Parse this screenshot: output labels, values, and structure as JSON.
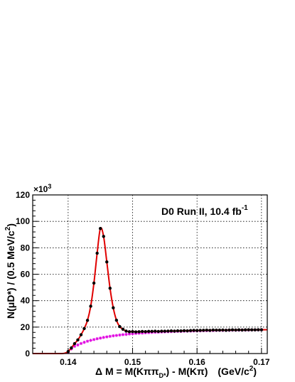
{
  "chart_data": {
    "type": "scatter",
    "title": {
      "main": "D0 Run II, 10.4 fb",
      "sup": "-1"
    },
    "xlabel": {
      "delta_m": "Δ M = M(Kππ",
      "sub_d": "D*",
      "rest": ") - M(Kπ)",
      "units_pre": "(GeV/c",
      "units_sup": "2",
      "units_post": ")"
    },
    "ylabel": {
      "pre": "N(μD*) / (0.5 MeV/c",
      "sup": "2",
      "post": ")"
    },
    "y_multiplier": {
      "base": "×10",
      "exp": "3"
    },
    "xlim": [
      0.1345,
      0.1709
    ],
    "ylim": [
      0,
      120
    ],
    "grid": true,
    "x_ticks": [
      0.14,
      0.15,
      0.16,
      0.17
    ],
    "x_tick_labels": [
      "0.14",
      "0.15",
      "0.16",
      "0.17"
    ],
    "y_ticks": [
      0,
      20,
      40,
      60,
      80,
      100,
      120
    ],
    "y_tick_labels": [
      "0",
      "20",
      "40",
      "60",
      "80",
      "100",
      "120"
    ],
    "colors": {
      "data": "#000000",
      "fit": "#e00000",
      "background": "#e000e0"
    },
    "series": [
      {
        "role": "data",
        "x": [
          0.14,
          0.1405,
          0.141,
          0.1415,
          0.142,
          0.1425,
          0.143,
          0.1435,
          0.144,
          0.1445,
          0.145,
          0.1455,
          0.146,
          0.1465,
          0.147,
          0.1475,
          0.148,
          0.1485,
          0.149,
          0.1495,
          0.15,
          0.1505,
          0.151,
          0.1515,
          0.152,
          0.1525,
          0.153,
          0.1535,
          0.154,
          0.1545,
          0.155,
          0.1555,
          0.156,
          0.1565,
          0.157,
          0.1575,
          0.158,
          0.1585,
          0.159,
          0.1595,
          0.16,
          0.1605,
          0.161,
          0.1615,
          0.162,
          0.1625,
          0.163,
          0.1635,
          0.164,
          0.1645,
          0.165,
          0.1655,
          0.166,
          0.1665,
          0.167,
          0.1675,
          0.168,
          0.1685,
          0.169,
          0.1695,
          0.17
        ],
        "y": [
          1.5,
          4.3,
          7.5,
          10.3,
          14.2,
          18.9,
          25.1,
          35.8,
          53.3,
          75.9,
          94.6,
          88.6,
          69.3,
          49.4,
          34.6,
          25.2,
          20.4,
          18.4,
          17.0,
          16.5,
          16.6,
          16.4,
          16.5,
          16.7,
          16.6,
          16.8,
          16.8,
          16.9,
          16.7,
          16.9,
          16.9,
          17.0,
          17.1,
          17.0,
          17.2,
          17.1,
          17.3,
          17.2,
          17.4,
          17.5,
          17.4,
          17.5,
          17.6,
          17.7,
          17.5,
          17.8,
          17.7,
          17.7,
          17.8,
          17.6,
          17.8,
          17.9,
          17.8,
          17.9,
          17.8,
          17.9,
          18.0,
          17.9,
          17.9,
          18.0,
          18.0
        ]
      },
      {
        "role": "fit",
        "x": [
          0.1345,
          0.136,
          0.138,
          0.139,
          0.1395,
          0.14,
          0.1405,
          0.141,
          0.1415,
          0.142,
          0.1425,
          0.143,
          0.1435,
          0.144,
          0.1445,
          0.145,
          0.1455,
          0.146,
          0.1465,
          0.147,
          0.1475,
          0.148,
          0.1485,
          0.149,
          0.1495,
          0.15,
          0.151,
          0.152,
          0.154,
          0.156,
          0.158,
          0.16,
          0.162,
          0.164,
          0.166,
          0.168,
          0.1709
        ],
        "y": [
          0,
          0,
          0,
          0,
          0.3,
          1.5,
          4.3,
          7.5,
          10.3,
          14.2,
          18.9,
          25.1,
          35.8,
          53.3,
          75.9,
          94.6,
          88.6,
          69.3,
          49.4,
          34.6,
          25.2,
          20.4,
          18.4,
          17.0,
          16.5,
          16.6,
          16.5,
          16.6,
          16.8,
          17.0,
          17.2,
          17.4,
          17.6,
          17.7,
          17.8,
          17.9,
          18.0
        ]
      },
      {
        "role": "background",
        "x": [
          0.14,
          0.1405,
          0.141,
          0.1415,
          0.142,
          0.1425,
          0.143,
          0.1435,
          0.144,
          0.1445,
          0.145,
          0.1455,
          0.146,
          0.1465,
          0.147,
          0.1475,
          0.148,
          0.1485,
          0.149,
          0.1495,
          0.15,
          0.1505,
          0.151,
          0.1515,
          0.152,
          0.1525,
          0.153,
          0.1535,
          0.154,
          0.1545,
          0.155,
          0.1555,
          0.156,
          0.1565,
          0.157,
          0.1575,
          0.158,
          0.1585,
          0.159,
          0.1595,
          0.16,
          0.1605,
          0.161,
          0.1615,
          0.162,
          0.1625,
          0.163,
          0.1635,
          0.164,
          0.1645,
          0.165,
          0.1655,
          0.166,
          0.1665,
          0.167,
          0.1675,
          0.168,
          0.1685,
          0.169,
          0.1695,
          0.17
        ],
        "y": [
          0.8,
          3.5,
          5.5,
          6.5,
          7.6,
          8.5,
          9.3,
          10.0,
          10.6,
          11.2,
          11.7,
          12.2,
          12.6,
          13.0,
          13.4,
          13.7,
          14.0,
          14.3,
          14.5,
          14.8,
          15.0,
          15.2,
          15.4,
          15.5,
          15.7,
          15.8,
          16.0,
          16.1,
          16.2,
          16.3,
          16.4,
          16.5,
          16.6,
          16.7,
          16.8,
          16.8,
          16.9,
          17.0,
          17.0,
          17.1,
          17.2,
          17.2,
          17.3,
          17.3,
          17.4,
          17.4,
          17.5,
          17.5,
          17.5,
          17.6,
          17.6,
          17.7,
          17.7,
          17.7,
          17.8,
          17.8,
          17.8,
          17.9,
          17.9,
          17.9,
          18.0
        ]
      }
    ]
  }
}
